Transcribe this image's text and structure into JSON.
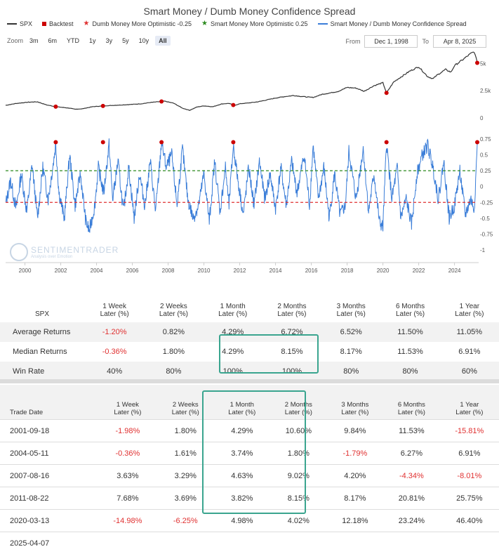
{
  "chart_data": {
    "type": "line",
    "title": "Smart Money / Dumb Money Confidence Spread",
    "legend": [
      "SPX",
      "Backtest",
      "Dumb Money More Optimistic -0.25",
      "Smart Money More Optimistic 0.25",
      "Smart Money / Dumb Money Confidence Spread"
    ],
    "x_ticks": [
      "2000",
      "2002",
      "2004",
      "2006",
      "2008",
      "2010",
      "2012",
      "2014",
      "2016",
      "2018",
      "2020",
      "2022",
      "2024"
    ],
    "upper_ticks": [
      "5k",
      "2.5k",
      "0"
    ],
    "lower_ticks": [
      "0.75",
      "0.5",
      "0.25",
      "0",
      "-0.25",
      "-0.5",
      "-0.75",
      "-1"
    ],
    "ylim_lower": [
      -1,
      0.75
    ],
    "ylim_upper": [
      0,
      5800
    ],
    "dumb_threshold": -0.25,
    "smart_threshold": 0.25,
    "spx_series": [
      [
        1998.92,
        1160
      ],
      [
        1999.5,
        1330
      ],
      [
        2000.2,
        1450
      ],
      [
        2000.7,
        1480
      ],
      [
        2001.2,
        1200
      ],
      [
        2001.7,
        1040
      ],
      [
        2002.5,
        900
      ],
      [
        2002.8,
        800
      ],
      [
        2003.2,
        840
      ],
      [
        2003.8,
        1040
      ],
      [
        2004.5,
        1120
      ],
      [
        2005.5,
        1200
      ],
      [
        2006.5,
        1300
      ],
      [
        2007.0,
        1420
      ],
      [
        2007.8,
        1540
      ],
      [
        2008.3,
        1360
      ],
      [
        2008.8,
        900
      ],
      [
        2009.2,
        700
      ],
      [
        2009.6,
        1000
      ],
      [
        2010.0,
        1110
      ],
      [
        2010.5,
        1030
      ],
      [
        2011.0,
        1290
      ],
      [
        2011.4,
        1340
      ],
      [
        2011.7,
        1150
      ],
      [
        2012.0,
        1300
      ],
      [
        2012.5,
        1380
      ],
      [
        2013.0,
        1480
      ],
      [
        2013.5,
        1650
      ],
      [
        2014.0,
        1830
      ],
      [
        2014.5,
        1960
      ],
      [
        2015.0,
        2060
      ],
      [
        2015.6,
        1950
      ],
      [
        2016.1,
        1880
      ],
      [
        2016.6,
        2170
      ],
      [
        2017.0,
        2280
      ],
      [
        2017.5,
        2440
      ],
      [
        2018.0,
        2800
      ],
      [
        2018.5,
        2740
      ],
      [
        2018.95,
        2450
      ],
      [
        2019.5,
        2960
      ],
      [
        2020.0,
        3230
      ],
      [
        2020.2,
        2300
      ],
      [
        2020.6,
        3300
      ],
      [
        2021.0,
        3750
      ],
      [
        2021.5,
        4300
      ],
      [
        2022.0,
        4700
      ],
      [
        2022.5,
        3800
      ],
      [
        2022.8,
        3600
      ],
      [
        2023.0,
        3900
      ],
      [
        2023.5,
        4450
      ],
      [
        2023.8,
        4200
      ],
      [
        2024.0,
        4800
      ],
      [
        2024.5,
        5400
      ],
      [
        2024.9,
        5900
      ],
      [
        2025.1,
        6080
      ],
      [
        2025.27,
        5060
      ]
    ],
    "spread_series": [
      [
        1998.92,
        -0.28
      ],
      [
        1999.2,
        0.1
      ],
      [
        1999.5,
        -0.35
      ],
      [
        1999.8,
        0.2
      ],
      [
        2000.1,
        -0.4
      ],
      [
        2000.4,
        0.35
      ],
      [
        2000.7,
        -0.5
      ],
      [
        2001.0,
        0.3
      ],
      [
        2001.3,
        -0.2
      ],
      [
        2001.6,
        0.4
      ],
      [
        2001.72,
        0.68
      ],
      [
        2001.9,
        -0.1
      ],
      [
        2002.2,
        -0.5
      ],
      [
        2002.5,
        0.5
      ],
      [
        2002.8,
        -0.3
      ],
      [
        2003.1,
        0.2
      ],
      [
        2003.4,
        -0.55
      ],
      [
        2003.6,
        -0.7
      ],
      [
        2003.9,
        -0.3
      ],
      [
        2004.1,
        0.3
      ],
      [
        2004.4,
        -0.1
      ],
      [
        2004.7,
        0.66
      ],
      [
        2004.9,
        -0.2
      ],
      [
        2005.2,
        0.4
      ],
      [
        2005.5,
        -0.4
      ],
      [
        2005.8,
        0.3
      ],
      [
        2006.1,
        -0.5
      ],
      [
        2006.4,
        0.2
      ],
      [
        2006.7,
        -0.3
      ],
      [
        2007.0,
        0.4
      ],
      [
        2007.3,
        -0.4
      ],
      [
        2007.63,
        0.7
      ],
      [
        2007.9,
        0.3
      ],
      [
        2008.2,
        0.5
      ],
      [
        2008.5,
        -0.3
      ],
      [
        2008.8,
        0.6
      ],
      [
        2009.1,
        -0.2
      ],
      [
        2009.4,
        -0.5
      ],
      [
        2009.7,
        -0.3
      ],
      [
        2010.0,
        0.2
      ],
      [
        2010.3,
        -0.55
      ],
      [
        2010.6,
        0.4
      ],
      [
        2010.9,
        -0.4
      ],
      [
        2011.2,
        0.3
      ],
      [
        2011.4,
        -0.3
      ],
      [
        2011.64,
        0.65
      ],
      [
        2011.9,
        0.1
      ],
      [
        2012.2,
        -0.45
      ],
      [
        2012.5,
        0.3
      ],
      [
        2012.8,
        -0.3
      ],
      [
        2013.1,
        0.4
      ],
      [
        2013.4,
        -0.2
      ],
      [
        2013.7,
        0.2
      ],
      [
        2014.0,
        -0.35
      ],
      [
        2014.3,
        0.3
      ],
      [
        2014.6,
        -0.3
      ],
      [
        2014.9,
        0.4
      ],
      [
        2015.2,
        -0.1
      ],
      [
        2015.6,
        0.5
      ],
      [
        2015.9,
        -0.3
      ],
      [
        2016.1,
        0.65
      ],
      [
        2016.4,
        -0.2
      ],
      [
        2016.7,
        0.3
      ],
      [
        2017.0,
        -0.5
      ],
      [
        2017.3,
        0.2
      ],
      [
        2017.6,
        -0.45
      ],
      [
        2017.9,
        -0.3
      ],
      [
        2018.1,
        0.55
      ],
      [
        2018.5,
        -0.2
      ],
      [
        2018.9,
        0.6
      ],
      [
        2019.2,
        -0.4
      ],
      [
        2019.5,
        0.2
      ],
      [
        2019.8,
        -0.55
      ],
      [
        2020.0,
        -0.65
      ],
      [
        2020.2,
        0.69
      ],
      [
        2020.5,
        -0.2
      ],
      [
        2020.8,
        0.3
      ],
      [
        2021.0,
        -0.5
      ],
      [
        2021.3,
        -0.2
      ],
      [
        2021.6,
        -0.6
      ],
      [
        2021.9,
        0.2
      ],
      [
        2022.2,
        0.5
      ],
      [
        2022.5,
        0.65
      ],
      [
        2022.8,
        0.3
      ],
      [
        2023.1,
        -0.2
      ],
      [
        2023.4,
        0.4
      ],
      [
        2023.7,
        -0.5
      ],
      [
        2024.0,
        -0.3
      ],
      [
        2024.3,
        0.25
      ],
      [
        2024.6,
        -0.45
      ],
      [
        2024.9,
        -0.2
      ],
      [
        2025.1,
        -0.35
      ],
      [
        2025.2,
        0.2
      ],
      [
        2025.27,
        0.68
      ]
    ],
    "backtest_dates": [
      2001.72,
      2004.36,
      2007.63,
      2011.64,
      2020.2,
      2025.27
    ]
  },
  "zoom": {
    "label": "Zoom",
    "buttons": [
      "3m",
      "6m",
      "YTD",
      "1y",
      "3y",
      "5y",
      "10y",
      "All"
    ],
    "active": "All"
  },
  "range": {
    "from_label": "From",
    "from": "Dec 1, 1998",
    "to_label": "To",
    "to": "Apr 8, 2025"
  },
  "watermark": {
    "name": "SENTIMENTRADER",
    "tagline": "Analysis over Emotion"
  },
  "colors": {
    "spx": "#333333",
    "backtest": "#cc0000",
    "dumb": "#e03131",
    "smart": "#2b8a1e",
    "spread": "#3a7dd8",
    "highlight": "#3aa58f"
  },
  "summary": {
    "headers": [
      "SPX",
      "1 Week\nLater (%)",
      "2 Weeks\nLater (%)",
      "1 Month\nLater (%)",
      "2 Months\nLater (%)",
      "3 Months\nLater (%)",
      "6 Months\nLater (%)",
      "1 Year\nLater (%)"
    ],
    "rows": [
      [
        "Average Returns",
        "-1.20%",
        "0.82%",
        "4.29%",
        "6.72%",
        "6.52%",
        "11.50%",
        "11.05%"
      ],
      [
        "Median Returns",
        "-0.36%",
        "1.80%",
        "4.29%",
        "8.15%",
        "8.17%",
        "11.53%",
        "6.91%"
      ],
      [
        "Win Rate",
        "40%",
        "80%",
        "100%",
        "100%",
        "80%",
        "80%",
        "60%"
      ]
    ]
  },
  "trades": {
    "headers": [
      "Trade Date",
      "1 Week\nLater (%)",
      "2 Weeks\nLater (%)",
      "1 Month\nLater (%)",
      "2 Months\nLater (%)",
      "3 Months\nLater (%)",
      "6 Months\nLater (%)",
      "1 Year\nLater (%)"
    ],
    "rows": [
      [
        "2001-09-18",
        "-1.98%",
        "1.80%",
        "4.29%",
        "10.60%",
        "9.84%",
        "11.53%",
        "-15.81%"
      ],
      [
        "2004-05-11",
        "-0.36%",
        "1.61%",
        "3.74%",
        "1.80%",
        "-1.79%",
        "6.27%",
        "6.91%"
      ],
      [
        "2007-08-16",
        "3.63%",
        "3.29%",
        "4.63%",
        "9.02%",
        "4.20%",
        "-4.34%",
        "-8.01%"
      ],
      [
        "2011-08-22",
        "7.68%",
        "3.69%",
        "3.82%",
        "8.15%",
        "8.17%",
        "20.81%",
        "25.75%"
      ],
      [
        "2020-03-13",
        "-14.98%",
        "-6.25%",
        "4.98%",
        "4.02%",
        "12.18%",
        "23.24%",
        "46.40%"
      ],
      [
        "2025-04-07",
        "",
        "",
        "",
        "",
        "",
        "",
        ""
      ]
    ]
  }
}
